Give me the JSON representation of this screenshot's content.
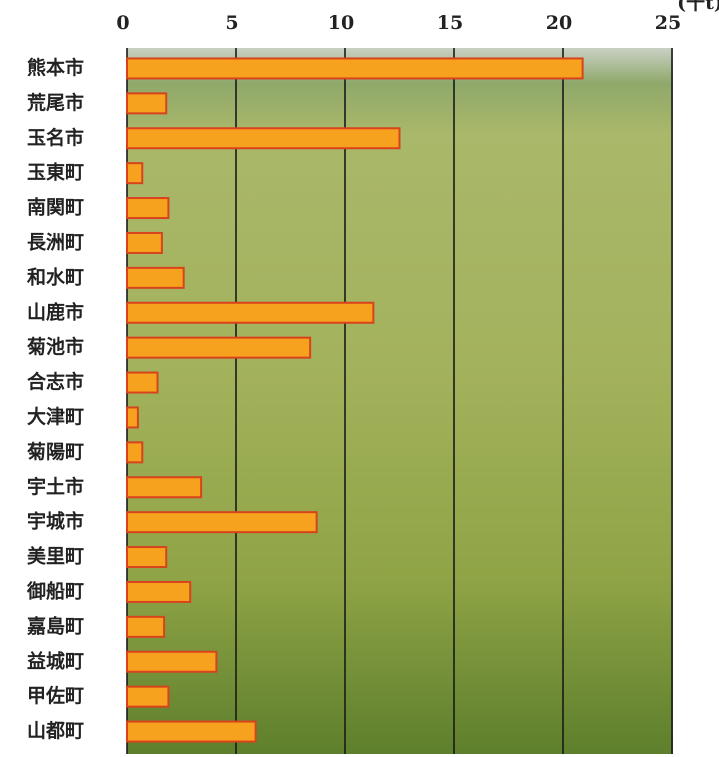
{
  "chart_data": {
    "type": "barh",
    "unit": "(千t)",
    "categories": [
      "熊本市",
      "荒尾市",
      "玉名市",
      "玉東町",
      "南関町",
      "長洲町",
      "和水町",
      "山鹿市",
      "菊池市",
      "合志市",
      "大津町",
      "菊陽町",
      "宇土市",
      "宇城市",
      "美里町",
      "御船町",
      "嘉島町",
      "益城町",
      "甲佐町",
      "山都町"
    ],
    "values": [
      20.9,
      1.8,
      12.5,
      0.7,
      1.9,
      1.6,
      2.6,
      11.3,
      8.4,
      1.4,
      0.5,
      0.7,
      3.4,
      8.7,
      1.8,
      2.9,
      1.7,
      4.1,
      1.9,
      5.9
    ],
    "color": "#f6a21e",
    "edge_color": "#d8431c",
    "xlim": [
      0,
      25
    ],
    "xticks": [
      0,
      5,
      10,
      15,
      20,
      25
    ],
    "grid": true
  }
}
